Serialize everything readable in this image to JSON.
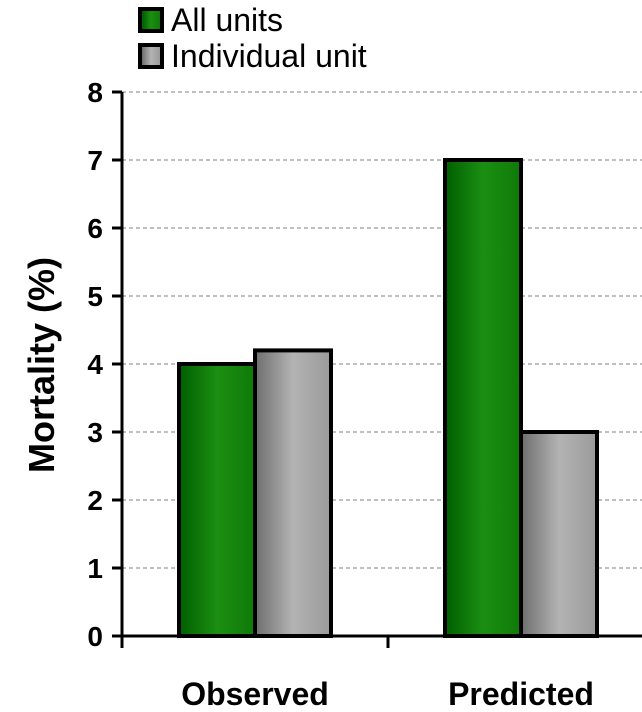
{
  "chart_data": {
    "type": "bar",
    "categories": [
      "Observed",
      "Predicted"
    ],
    "series": [
      {
        "name": "All units",
        "values": [
          4.0,
          7.0
        ],
        "color": "#1a8a10"
      },
      {
        "name": "Individual unit",
        "values": [
          4.2,
          3.0
        ],
        "color": "#a8a8a8"
      }
    ],
    "title": "",
    "xlabel": "",
    "ylabel": "Mortality (%)",
    "ylim": [
      0,
      8
    ],
    "yticks": [
      "0",
      "1",
      "2",
      "3",
      "4",
      "5",
      "6",
      "7",
      "8"
    ],
    "grid": true,
    "legend_position": "top-left"
  }
}
